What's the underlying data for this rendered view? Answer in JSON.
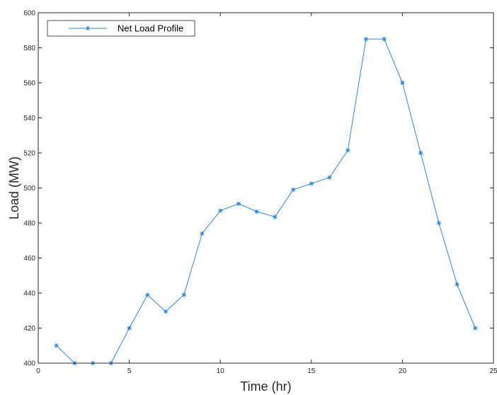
{
  "chart_data": {
    "type": "line",
    "title": "",
    "xlabel": "Time (hr)",
    "ylabel": "Load (MW)",
    "xlim": [
      0,
      25
    ],
    "ylim": [
      400,
      600
    ],
    "xticks": [
      0,
      5,
      10,
      15,
      20,
      25
    ],
    "xtick_labels": [
      "0",
      "5",
      "10",
      "15",
      "20",
      "25"
    ],
    "yticks": [
      400,
      420,
      440,
      460,
      480,
      500,
      520,
      540,
      560,
      580,
      600
    ],
    "ytick_labels": [
      "400",
      "420",
      "440",
      "460",
      "480",
      "500",
      "520",
      "540",
      "560",
      "580",
      "600"
    ],
    "grid": false,
    "legend_position": "top-left",
    "series": [
      {
        "name": "Net Load Profile",
        "color": "#2E86DE",
        "marker": "asterisk",
        "x": [
          1,
          2,
          3,
          4,
          5,
          6,
          7,
          8,
          9,
          10,
          11,
          12,
          13,
          14,
          15,
          16,
          17,
          18,
          19,
          20,
          21,
          22,
          23,
          24
        ],
        "y": [
          410,
          400,
          400,
          400,
          420,
          439,
          429.5,
          439,
          474,
          487,
          491,
          486.5,
          483.5,
          499,
          502.5,
          506,
          521.5,
          585,
          585,
          560,
          520,
          480,
          445,
          420
        ]
      }
    ]
  }
}
